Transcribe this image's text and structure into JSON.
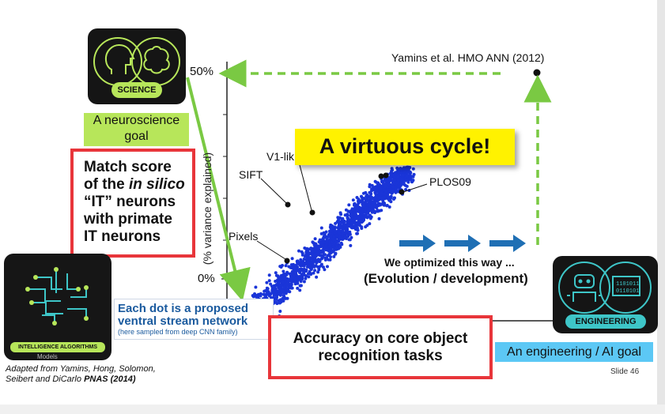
{
  "reference": "Yamins et al. HMO ANN (2012)",
  "y_axis": {
    "label": "(% variance explained)",
    "top_tick": "50%",
    "bottom_tick": "0%"
  },
  "points": {
    "sift": "SIFT",
    "v1": "V1-lik",
    "pixels": "Pixels",
    "plos": "PLOS09"
  },
  "virtuous_cycle": "A virtuous cycle!",
  "science_tile": {
    "badge": "SCIENCE",
    "caption_line1": "A neuroscience",
    "caption_line2": "goal"
  },
  "match_box": {
    "line1": "Match score",
    "line2_a": "of the ",
    "line2_b": "in silico",
    "line3": "“IT” neurons",
    "line4": "with primate",
    "line5": "IT neurons"
  },
  "intelligence_tile": {
    "badge": "INTELLIGENCE ALGORITHMS",
    "sub": "Models"
  },
  "dots_caption": {
    "line1": "Each dot is a proposed",
    "line2": "ventral stream network",
    "line3": "(here sampled from deep CNN family)"
  },
  "optimized": {
    "line1": "We optimized this way ...",
    "line2": "(Evolution / development)"
  },
  "accuracy_box": {
    "line1": "Accuracy on core object",
    "line2": "recognition tasks"
  },
  "engineering_tile": {
    "badge": "ENGINEERING",
    "caption": "An engineering / AI goal"
  },
  "citation": {
    "line1": "Adapted from Yamins, Hong, Solomon,",
    "line2_a": "Seibert and DiCarlo ",
    "line2_b": "PNAS (2014)"
  },
  "slide": {
    "label": "Slide",
    "number": "46"
  }
}
